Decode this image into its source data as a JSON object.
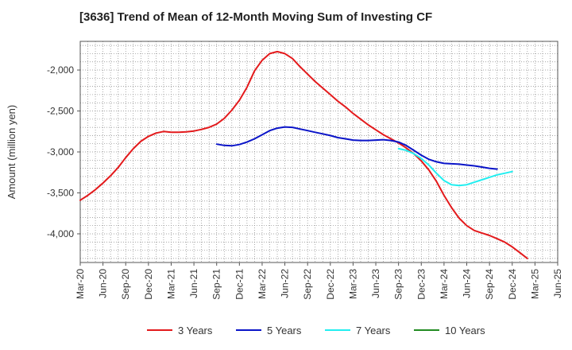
{
  "chart_data": {
    "type": "line",
    "title": "[3636]  Trend of Mean of 12-Month Moving Sum of Investing CF",
    "xlabel": "",
    "ylabel": "Amount (million yen)",
    "ylim": [
      -4350,
      -1650
    ],
    "yticks": [
      -4000,
      -3500,
      -3000,
      -2500,
      -2000
    ],
    "ytick_labels": [
      "-4,000",
      "-3,500",
      "-3,000",
      "-2,500",
      "-2,000"
    ],
    "x_ticks": [
      "Mar-20",
      "Jun-20",
      "Sep-20",
      "Dec-20",
      "Mar-21",
      "Jun-21",
      "Sep-21",
      "Dec-21",
      "Mar-22",
      "Jun-22",
      "Sep-22",
      "Dec-22",
      "Mar-23",
      "Jun-23",
      "Sep-23",
      "Dec-23",
      "Mar-24",
      "Jun-24",
      "Sep-24",
      "Dec-24",
      "Mar-25",
      "Jun-25"
    ],
    "x_start": "Mar-20",
    "grid": true,
    "legend_position": "bottom",
    "series": [
      {
        "name": "3 Years",
        "color": "#e31a1c",
        "start_index": 0,
        "values": [
          -3590,
          -3530,
          -3460,
          -3380,
          -3290,
          -3190,
          -3070,
          -2960,
          -2870,
          -2810,
          -2770,
          -2750,
          -2760,
          -2760,
          -2755,
          -2745,
          -2725,
          -2700,
          -2660,
          -2590,
          -2490,
          -2370,
          -2210,
          -2010,
          -1880,
          -1800,
          -1775,
          -1800,
          -1860,
          -1960,
          -2050,
          -2140,
          -2220,
          -2300,
          -2380,
          -2450,
          -2530,
          -2600,
          -2670,
          -2730,
          -2790,
          -2840,
          -2890,
          -2950,
          -3020,
          -3110,
          -3220,
          -3360,
          -3530,
          -3680,
          -3810,
          -3900,
          -3960,
          -3990,
          -4020,
          -4060,
          -4100,
          -4160,
          -4230,
          -4300
        ]
      },
      {
        "name": "5 Years",
        "color": "#0a14c8",
        "start_index": 18,
        "values": [
          -2905,
          -2920,
          -2925,
          -2910,
          -2880,
          -2840,
          -2790,
          -2740,
          -2710,
          -2695,
          -2700,
          -2720,
          -2740,
          -2760,
          -2780,
          -2800,
          -2825,
          -2840,
          -2855,
          -2860,
          -2860,
          -2855,
          -2850,
          -2860,
          -2880,
          -2920,
          -2980,
          -3040,
          -3090,
          -3120,
          -3140,
          -3145,
          -3150,
          -3160,
          -3170,
          -3185,
          -3200,
          -3210
        ]
      },
      {
        "name": "7 Years",
        "color": "#22eef0",
        "start_index": 42,
        "values": [
          -2960,
          -2980,
          -3020,
          -3080,
          -3160,
          -3260,
          -3350,
          -3400,
          -3410,
          -3400,
          -3370,
          -3340,
          -3310,
          -3280,
          -3260,
          -3240
        ]
      },
      {
        "name": "10 Years",
        "color": "#228b22",
        "start_index": 0,
        "values": []
      }
    ]
  }
}
